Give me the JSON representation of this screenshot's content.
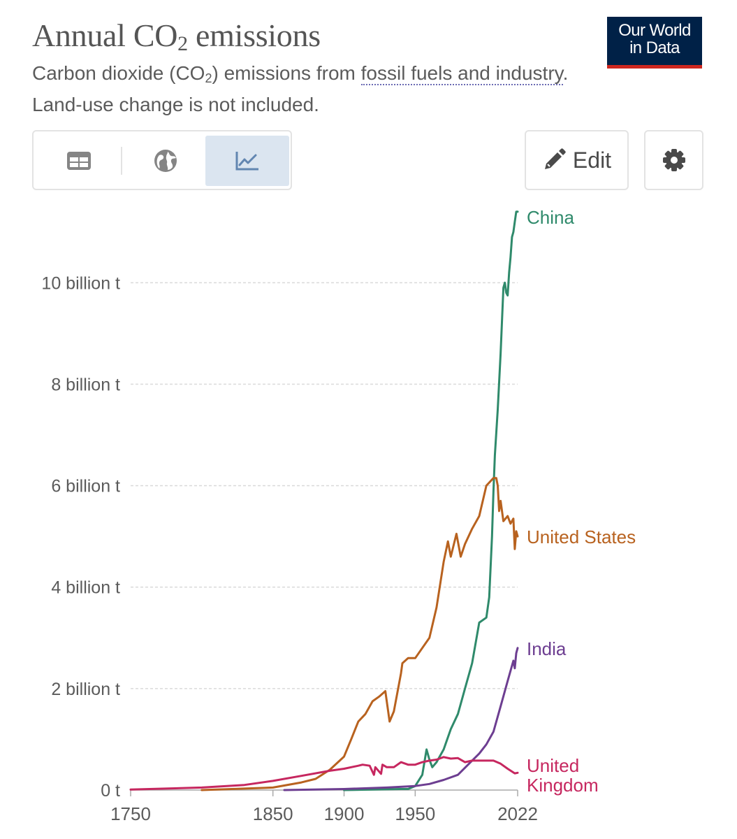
{
  "header": {
    "title_main": "Annual CO",
    "title_sub": "2",
    "title_end": " emissions",
    "subtitle_a": "Carbon dioxide (CO",
    "subtitle_sub": "2",
    "subtitle_b": ") emissions from ",
    "subtitle_link": "fossil fuels and industry",
    "subtitle_c": ". Land-use change is not included."
  },
  "logo": {
    "line1": "Our World",
    "line2": "in Data"
  },
  "toolbar": {
    "tabs": [
      {
        "icon": "table-icon",
        "active": false
      },
      {
        "icon": "globe-icon",
        "active": false
      },
      {
        "icon": "line-chart-icon",
        "active": true
      }
    ],
    "edit_label": "Edit",
    "settings_icon": "gear-icon"
  },
  "chart_data": {
    "type": "line",
    "title": "Annual CO2 emissions",
    "ylim": [
      0,
      11.3
    ],
    "xlim": [
      1750,
      2022
    ],
    "y_ticks": [
      {
        "value": 0,
        "label": "0 t"
      },
      {
        "value": 2,
        "label": "2 billion t"
      },
      {
        "value": 4,
        "label": "4 billion t"
      },
      {
        "value": 6,
        "label": "6 billion t"
      },
      {
        "value": 8,
        "label": "8 billion t"
      },
      {
        "value": 10,
        "label": "10 billion t"
      }
    ],
    "x_ticks": [
      {
        "value": 1750,
        "label": "1750"
      },
      {
        "value": 1850,
        "label": "1850"
      },
      {
        "value": 1900,
        "label": "1900"
      },
      {
        "value": 1950,
        "label": "1950"
      },
      {
        "value": 2022,
        "label": "2022"
      }
    ],
    "grid": "horizontal dashed",
    "legend": "line-end labels",
    "series": [
      {
        "name": "China",
        "color": "#2f8a6b",
        "label_lines": [
          "China"
        ],
        "x": [
          1900,
          1920,
          1940,
          1945,
          1950,
          1955,
          1958,
          1960,
          1962,
          1965,
          1970,
          1975,
          1980,
          1985,
          1990,
          1995,
          2000,
          2002,
          2004,
          2005,
          2006,
          2008,
          2010,
          2012,
          2013,
          2014,
          2015,
          2016,
          2017,
          2018,
          2019,
          2020,
          2021,
          2022
        ],
        "y": [
          0.0,
          0.01,
          0.02,
          0.02,
          0.08,
          0.3,
          0.8,
          0.6,
          0.45,
          0.55,
          0.8,
          1.2,
          1.5,
          2.0,
          2.5,
          3.3,
          3.4,
          3.8,
          5.0,
          5.9,
          6.6,
          7.5,
          8.6,
          9.9,
          10.0,
          9.8,
          9.75,
          10.2,
          10.5,
          10.9,
          11.0,
          11.2,
          11.4,
          11.4
        ]
      },
      {
        "name": "United States",
        "color": "#b8621f",
        "label_lines": [
          "United States"
        ],
        "x": [
          1800,
          1850,
          1870,
          1880,
          1890,
          1900,
          1905,
          1910,
          1915,
          1920,
          1925,
          1929,
          1932,
          1935,
          1940,
          1941,
          1945,
          1950,
          1955,
          1960,
          1965,
          1970,
          1973,
          1975,
          1979,
          1982,
          1985,
          1990,
          1995,
          2000,
          2005,
          2007,
          2008,
          2009,
          2010,
          2012,
          2015,
          2017,
          2019,
          2020,
          2021,
          2022
        ],
        "y": [
          0.0,
          0.05,
          0.15,
          0.22,
          0.4,
          0.66,
          1.0,
          1.35,
          1.5,
          1.75,
          1.85,
          1.95,
          1.35,
          1.55,
          2.3,
          2.5,
          2.6,
          2.6,
          2.8,
          3.0,
          3.6,
          4.5,
          4.9,
          4.6,
          5.05,
          4.6,
          4.85,
          5.15,
          5.4,
          6.0,
          6.15,
          6.15,
          6.0,
          5.5,
          5.7,
          5.3,
          5.4,
          5.25,
          5.35,
          4.75,
          5.1,
          5.0
        ]
      },
      {
        "name": "India",
        "color": "#6d3e91",
        "label_lines": [
          "India"
        ],
        "x": [
          1858,
          1900,
          1930,
          1950,
          1960,
          1970,
          1980,
          1990,
          1995,
          2000,
          2005,
          2010,
          2015,
          2017,
          2019,
          2020,
          2021,
          2022
        ],
        "y": [
          0.0,
          0.02,
          0.05,
          0.08,
          0.12,
          0.2,
          0.3,
          0.58,
          0.72,
          0.9,
          1.15,
          1.65,
          2.15,
          2.35,
          2.55,
          2.4,
          2.7,
          2.8
        ]
      },
      {
        "name": "United Kingdom",
        "color": "#c6275f",
        "label_lines": [
          "United",
          "Kingdom"
        ],
        "x": [
          1750,
          1800,
          1830,
          1850,
          1870,
          1890,
          1900,
          1910,
          1913,
          1918,
          1921,
          1922,
          1926,
          1927,
          1930,
          1935,
          1940,
          1945,
          1950,
          1955,
          1960,
          1965,
          1970,
          1975,
          1980,
          1985,
          1990,
          2000,
          2005,
          2010,
          2015,
          2020,
          2022
        ],
        "y": [
          0.01,
          0.05,
          0.1,
          0.18,
          0.28,
          0.38,
          0.42,
          0.48,
          0.5,
          0.48,
          0.3,
          0.45,
          0.32,
          0.5,
          0.45,
          0.45,
          0.55,
          0.5,
          0.5,
          0.55,
          0.58,
          0.6,
          0.65,
          0.62,
          0.63,
          0.55,
          0.58,
          0.58,
          0.58,
          0.52,
          0.42,
          0.33,
          0.34
        ]
      }
    ]
  }
}
